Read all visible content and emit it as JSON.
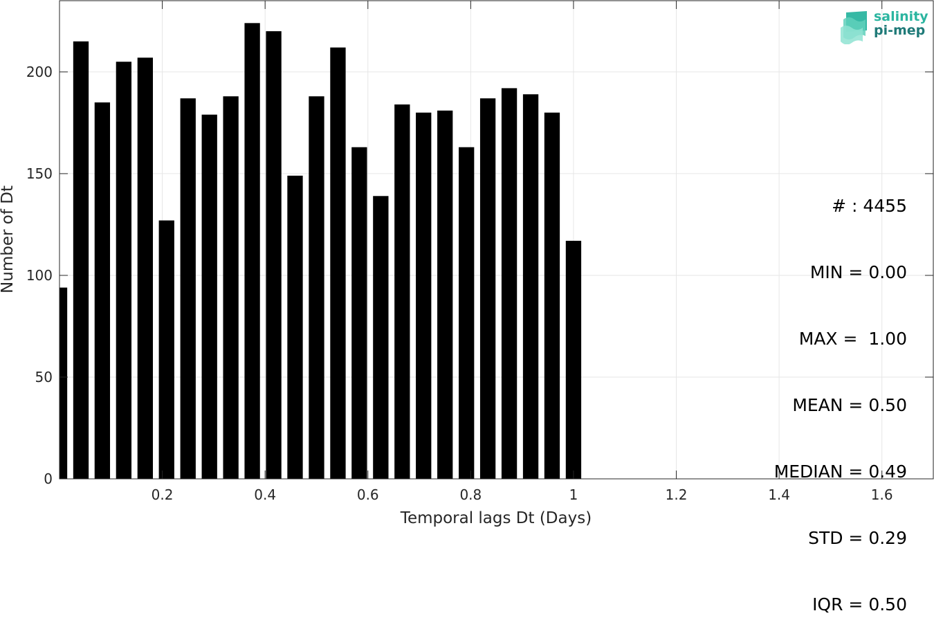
{
  "chart_data": {
    "type": "bar",
    "xlabel": "Temporal lags Dt (Days)",
    "ylabel": "Number of Dt",
    "xlim": [
      0,
      1.7
    ],
    "ylim": [
      0,
      235
    ],
    "grid": true,
    "xticks": [
      0.2,
      0.4,
      0.6,
      0.8,
      1.0,
      1.2,
      1.4,
      1.6
    ],
    "xtick_labels": [
      "0.2",
      "0.4",
      "0.6",
      "0.8",
      "1",
      "1.2",
      "1.4",
      "1.6"
    ],
    "yticks": [
      0,
      50,
      100,
      150,
      200
    ],
    "ytick_labels": [
      "0",
      "50",
      "100",
      "150",
      "200"
    ],
    "bin_width": 0.0417,
    "x": [
      0,
      0.0417,
      0.0833,
      0.125,
      0.1667,
      0.2083,
      0.25,
      0.2917,
      0.3333,
      0.375,
      0.4167,
      0.4583,
      0.5,
      0.5417,
      0.5833,
      0.625,
      0.6667,
      0.7083,
      0.75,
      0.7917,
      0.8333,
      0.875,
      0.9167,
      0.9583,
      1.0
    ],
    "values": [
      94,
      215,
      185,
      205,
      207,
      127,
      187,
      179,
      188,
      224,
      220,
      149,
      188,
      212,
      163,
      139,
      184,
      180,
      181,
      163,
      187,
      192,
      189,
      180,
      117
    ],
    "bar_color": "#000000"
  },
  "stats": {
    "lines": [
      "# : 4455",
      "MIN = 0.00",
      "MAX =  1.00",
      "MEAN = 0.50",
      "MEDIAN = 0.49",
      "STD = 0.29",
      "IQR = 0.50"
    ]
  },
  "logo": {
    "line1": "salinity",
    "line2": "pi-mep",
    "color1": "#2bb5a0",
    "color2": "#1f7a78",
    "icon": "salinity-waves-icon"
  }
}
